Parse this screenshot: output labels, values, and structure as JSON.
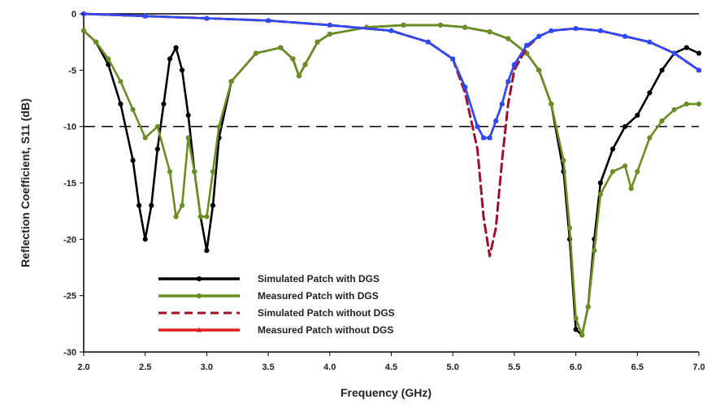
{
  "chart_data": {
    "type": "line",
    "title": "",
    "xlabel": "Frequency (GHz)",
    "ylabel": "Reflection Coefficient, S11 (dB)",
    "xlim": [
      2.0,
      7.0
    ],
    "ylim": [
      -30,
      0
    ],
    "xticks": [
      2.0,
      2.5,
      3.0,
      3.5,
      4.0,
      4.5,
      5.0,
      5.5,
      6.0,
      6.5,
      7.0
    ],
    "xtick_labels": [
      "2.0",
      "2.5",
      "3.0",
      "3.5",
      "4.0",
      "4.5",
      "5.0",
      "5.5",
      "6.0",
      "6.5",
      "7.0"
    ],
    "yticks": [
      0,
      -5,
      -10,
      -15,
      -20,
      -25,
      -30
    ],
    "ytick_labels": [
      "0",
      "-5",
      "-10",
      "-15",
      "-20",
      "-25",
      "-30"
    ],
    "reference_lines": [
      {
        "y": 0,
        "style": "solid"
      },
      {
        "y": -10,
        "style": "dashed"
      }
    ],
    "legend_position": "bottom-left",
    "series": [
      {
        "name": "Simulated Patch with DGS",
        "color": "#000000",
        "dash": "",
        "marker": "circle",
        "x": [
          2.0,
          2.1,
          2.2,
          2.3,
          2.4,
          2.45,
          2.5,
          2.55,
          2.6,
          2.65,
          2.7,
          2.75,
          2.8,
          2.85,
          2.9,
          2.95,
          3.0,
          3.05,
          3.1,
          3.2,
          3.4,
          3.6,
          3.7,
          3.75,
          3.8,
          3.9,
          4.0,
          4.3,
          4.6,
          4.9,
          5.1,
          5.3,
          5.45,
          5.6,
          5.7,
          5.8,
          5.9,
          5.95,
          6.0,
          6.05,
          6.1,
          6.15,
          6.2,
          6.3,
          6.4,
          6.5,
          6.6,
          6.7,
          6.8,
          6.9,
          7.0
        ],
        "y": [
          -1.5,
          -2.5,
          -4.5,
          -8,
          -13,
          -17,
          -20,
          -17,
          -12,
          -8,
          -4,
          -3,
          -5,
          -9,
          -14,
          -18,
          -21,
          -17,
          -11,
          -6,
          -3.5,
          -3,
          -4,
          -5.5,
          -4.5,
          -2.5,
          -1.8,
          -1.2,
          -1.0,
          -1.0,
          -1.2,
          -1.6,
          -2.2,
          -3.5,
          -5,
          -8,
          -14,
          -20,
          -28,
          -28.5,
          -26,
          -20,
          -15,
          -12,
          -10,
          -9,
          -7,
          -5,
          -3.5,
          -3,
          -3.5
        ]
      },
      {
        "name": "Measured Patch with DGS",
        "color": "#6b8e23",
        "dash": "",
        "marker": "circle",
        "x": [
          2.0,
          2.1,
          2.2,
          2.3,
          2.4,
          2.5,
          2.6,
          2.7,
          2.75,
          2.8,
          2.85,
          2.9,
          2.95,
          3.0,
          3.05,
          3.1,
          3.2,
          3.4,
          3.6,
          3.7,
          3.75,
          3.8,
          3.9,
          4.0,
          4.3,
          4.6,
          4.9,
          5.1,
          5.3,
          5.45,
          5.6,
          5.7,
          5.8,
          5.9,
          5.95,
          6.0,
          6.05,
          6.1,
          6.15,
          6.2,
          6.3,
          6.4,
          6.45,
          6.5,
          6.6,
          6.7,
          6.8,
          6.9,
          7.0
        ],
        "y": [
          -1.5,
          -2.5,
          -4,
          -6,
          -8.5,
          -11,
          -10,
          -14,
          -18,
          -17,
          -11,
          -14,
          -18,
          -18,
          -14,
          -10,
          -6,
          -3.5,
          -3,
          -4,
          -5.5,
          -4.5,
          -2.5,
          -1.8,
          -1.2,
          -1.0,
          -1.0,
          -1.2,
          -1.6,
          -2.2,
          -3.5,
          -5,
          -8,
          -13,
          -19,
          -27,
          -28.5,
          -26,
          -21,
          -16,
          -14,
          -13.5,
          -15.5,
          -14,
          -11,
          -9.5,
          -8.5,
          -8,
          -8
        ]
      },
      {
        "name": "Simulated Patch without DGS",
        "color": "#a0102a",
        "dash": "10,6",
        "marker": "none",
        "x": [
          2.0,
          2.5,
          3.0,
          3.5,
          4.0,
          4.5,
          4.8,
          5.0,
          5.1,
          5.2,
          5.25,
          5.3,
          5.35,
          5.4,
          5.45,
          5.5,
          5.6,
          5.7,
          5.8,
          6.0,
          6.2,
          6.4,
          6.6,
          6.8,
          7.0
        ],
        "y": [
          0,
          -0.2,
          -0.4,
          -0.6,
          -1.0,
          -1.5,
          -2.5,
          -4,
          -7,
          -12,
          -18,
          -21.5,
          -19,
          -13,
          -8,
          -5,
          -3,
          -2,
          -1.5,
          -1.3,
          -1.5,
          -2,
          -2.5,
          -3.5,
          -5
        ]
      },
      {
        "name": "Measured Patch without DGS",
        "color": "#e02020",
        "dash": "",
        "marker": "triangle",
        "x": [
          2.0,
          2.5,
          3.0,
          3.5,
          4.0,
          4.5,
          4.8,
          5.0,
          5.1,
          5.2,
          5.25,
          5.3,
          5.35,
          5.4,
          5.45,
          5.5,
          5.6,
          5.7,
          5.8,
          6.0,
          6.2,
          6.4,
          6.6,
          6.8,
          7.0
        ],
        "y": [
          0,
          -0.2,
          -0.4,
          -0.6,
          -1.0,
          -1.5,
          -2.5,
          -4,
          -6.5,
          -10,
          -11,
          -11,
          -9.5,
          -8,
          -6,
          -4.5,
          -2.8,
          -2,
          -1.5,
          -1.3,
          -1.5,
          -2,
          -2.5,
          -3.5,
          -5
        ]
      },
      {
        "name": "",
        "color": "#2a4bff",
        "dash": "",
        "marker": "circle",
        "x": [
          2.0,
          2.5,
          3.0,
          3.5,
          4.0,
          4.5,
          4.8,
          5.0,
          5.1,
          5.2,
          5.25,
          5.3,
          5.35,
          5.4,
          5.45,
          5.5,
          5.6,
          5.7,
          5.8,
          6.0,
          6.2,
          6.4,
          6.6,
          6.8,
          7.0
        ],
        "y": [
          0,
          -0.2,
          -0.4,
          -0.6,
          -1.0,
          -1.5,
          -2.5,
          -4,
          -6.5,
          -10,
          -11,
          -11,
          -9.5,
          -8,
          -6,
          -4.5,
          -2.8,
          -2,
          -1.5,
          -1.3,
          -1.5,
          -2,
          -2.5,
          -3.5,
          -5
        ]
      }
    ]
  }
}
